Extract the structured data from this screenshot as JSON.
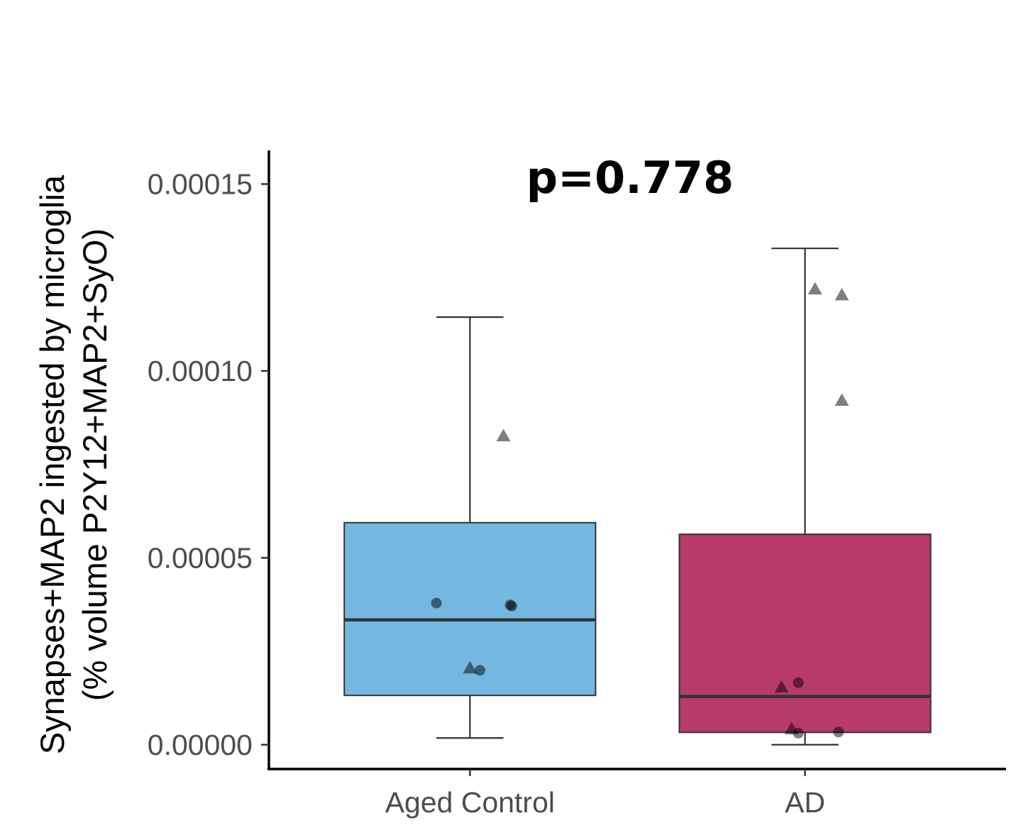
{
  "chart_data": {
    "type": "box",
    "ylabel": [
      "Synapses+MAP2 ingested by microglia",
      "(% volume P2Y12+MAP2+SyO)"
    ],
    "xlabel": "",
    "ylim": [
      -6.5e-06,
      0.000159
    ],
    "y_ticks": [
      0,
      5e-05,
      0.0001,
      0.00015
    ],
    "y_tick_labels": [
      "0.00000",
      "0.00005",
      "0.00010",
      "0.00015"
    ],
    "categories": [
      "Aged Control",
      "AD"
    ],
    "annotation": "p=0.778",
    "grid": false,
    "legend": "none",
    "boxes": [
      {
        "category": "Aged Control",
        "color": "#74b8e0",
        "whisker_low": 1.8e-06,
        "q1": 1.32e-05,
        "median": 3.34e-05,
        "q3": 5.94e-05,
        "whisker_high": 0.0001144,
        "points": [
          {
            "x_offset": -0.1,
            "y": 3.79e-05,
            "shape": "circle"
          },
          {
            "x_offset": 0.12,
            "y": 3.74e-05,
            "shape": "circle"
          },
          {
            "x_offset": 0.125,
            "y": 3.71e-05,
            "shape": "circle"
          },
          {
            "x_offset": 0.0,
            "y": 2.05e-05,
            "shape": "triangle"
          },
          {
            "x_offset": 0.03,
            "y": 1.99e-05,
            "shape": "circle"
          },
          {
            "x_offset": 0.1,
            "y": 8.26e-05,
            "shape": "triangle"
          }
        ]
      },
      {
        "category": "AD",
        "color": "#b83a6a",
        "whisker_low": 0.0,
        "q1": 3.3e-06,
        "median": 1.29e-05,
        "q3": 5.63e-05,
        "whisker_high": 0.0001328,
        "points": [
          {
            "x_offset": -0.07,
            "y": 1.54e-05,
            "shape": "triangle"
          },
          {
            "x_offset": -0.02,
            "y": 1.66e-05,
            "shape": "circle"
          },
          {
            "x_offset": -0.04,
            "y": 4.2e-06,
            "shape": "triangle"
          },
          {
            "x_offset": -0.02,
            "y": 3.1e-06,
            "shape": "circle"
          },
          {
            "x_offset": 0.1,
            "y": 3.4e-06,
            "shape": "circle"
          },
          {
            "x_offset": 0.03,
            "y": 0.0001219,
            "shape": "triangle"
          },
          {
            "x_offset": 0.11,
            "y": 0.0001203,
            "shape": "triangle"
          },
          {
            "x_offset": 0.11,
            "y": 9.21e-05,
            "shape": "triangle"
          }
        ]
      }
    ]
  }
}
